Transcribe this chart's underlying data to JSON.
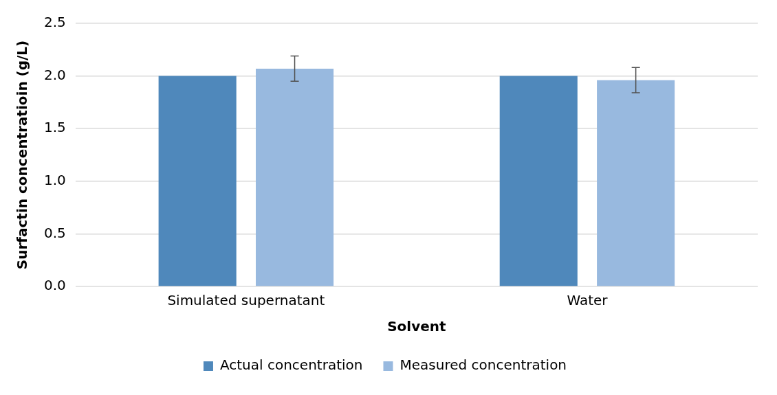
{
  "chart_data": {
    "type": "bar",
    "xlabel": "Solvent",
    "ylabel": "Surfactin concentratioin (g/L)",
    "categories": [
      "Simulated supernatant",
      "Water"
    ],
    "series": [
      {
        "name": "Actual concentration",
        "color": "#4f88bb",
        "values": [
          2.0,
          2.0
        ]
      },
      {
        "name": "Measured concentration",
        "color": "#98b9df",
        "values": [
          2.07,
          1.96
        ],
        "errors": [
          0.12,
          0.12
        ]
      }
    ],
    "ylim": [
      0,
      2.5
    ],
    "yticks": [
      {
        "value": 0,
        "label": "0.0"
      },
      {
        "value": 0.5,
        "label": "0.5"
      },
      {
        "value": 1,
        "label": "1.0"
      },
      {
        "value": 1.5,
        "label": "1.5"
      },
      {
        "value": 2,
        "label": "2.0"
      },
      {
        "value": 2.5,
        "label": "2.5"
      }
    ],
    "grid": "y",
    "legend": "bottom"
  }
}
